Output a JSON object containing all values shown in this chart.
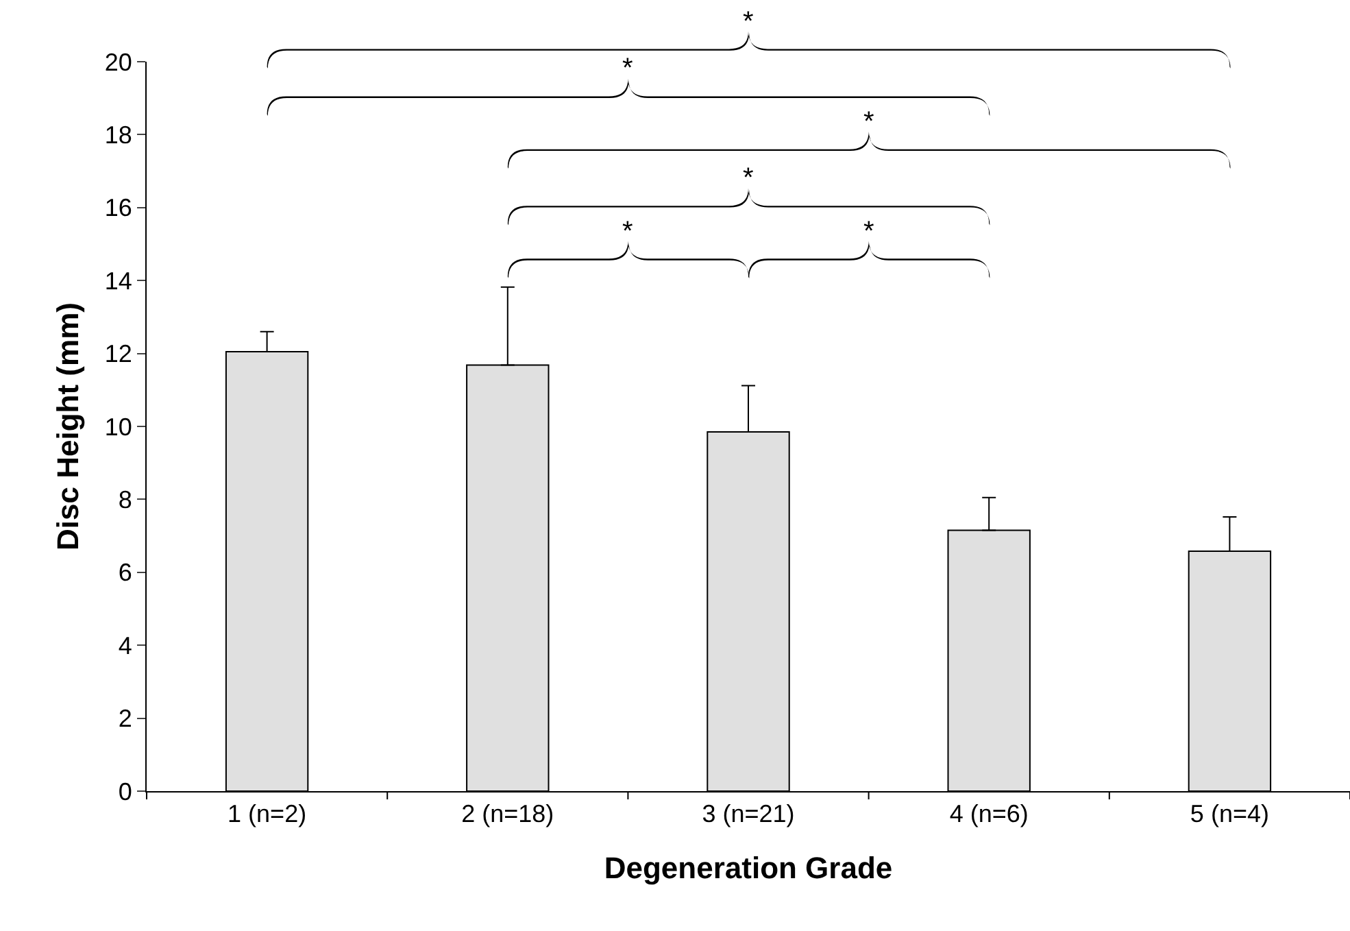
{
  "chart_data": {
    "type": "bar",
    "xlabel": "Degeneration Grade",
    "ylabel": "Disc Height (mm)",
    "categories": [
      "1 (n=2)",
      "2 (n=18)",
      "3 (n=21)",
      "4 (n=6)",
      "5 (n=4)"
    ],
    "values": [
      12.05,
      11.68,
      9.85,
      7.15,
      6.58
    ],
    "errors": [
      [
        12.05,
        12.6
      ],
      [
        11.68,
        13.82
      ],
      [
        9.85,
        11.12
      ],
      [
        7.15,
        8.05
      ],
      [
        6.58,
        7.52
      ]
    ],
    "color": "#e0e0e0",
    "ylim": [
      0,
      20
    ],
    "yticks": [
      0,
      2,
      4,
      6,
      8,
      10,
      12,
      14,
      16,
      18,
      20
    ],
    "grid": false,
    "annotations": [
      "*",
      "*",
      "*",
      "*",
      "*",
      "*"
    ]
  }
}
